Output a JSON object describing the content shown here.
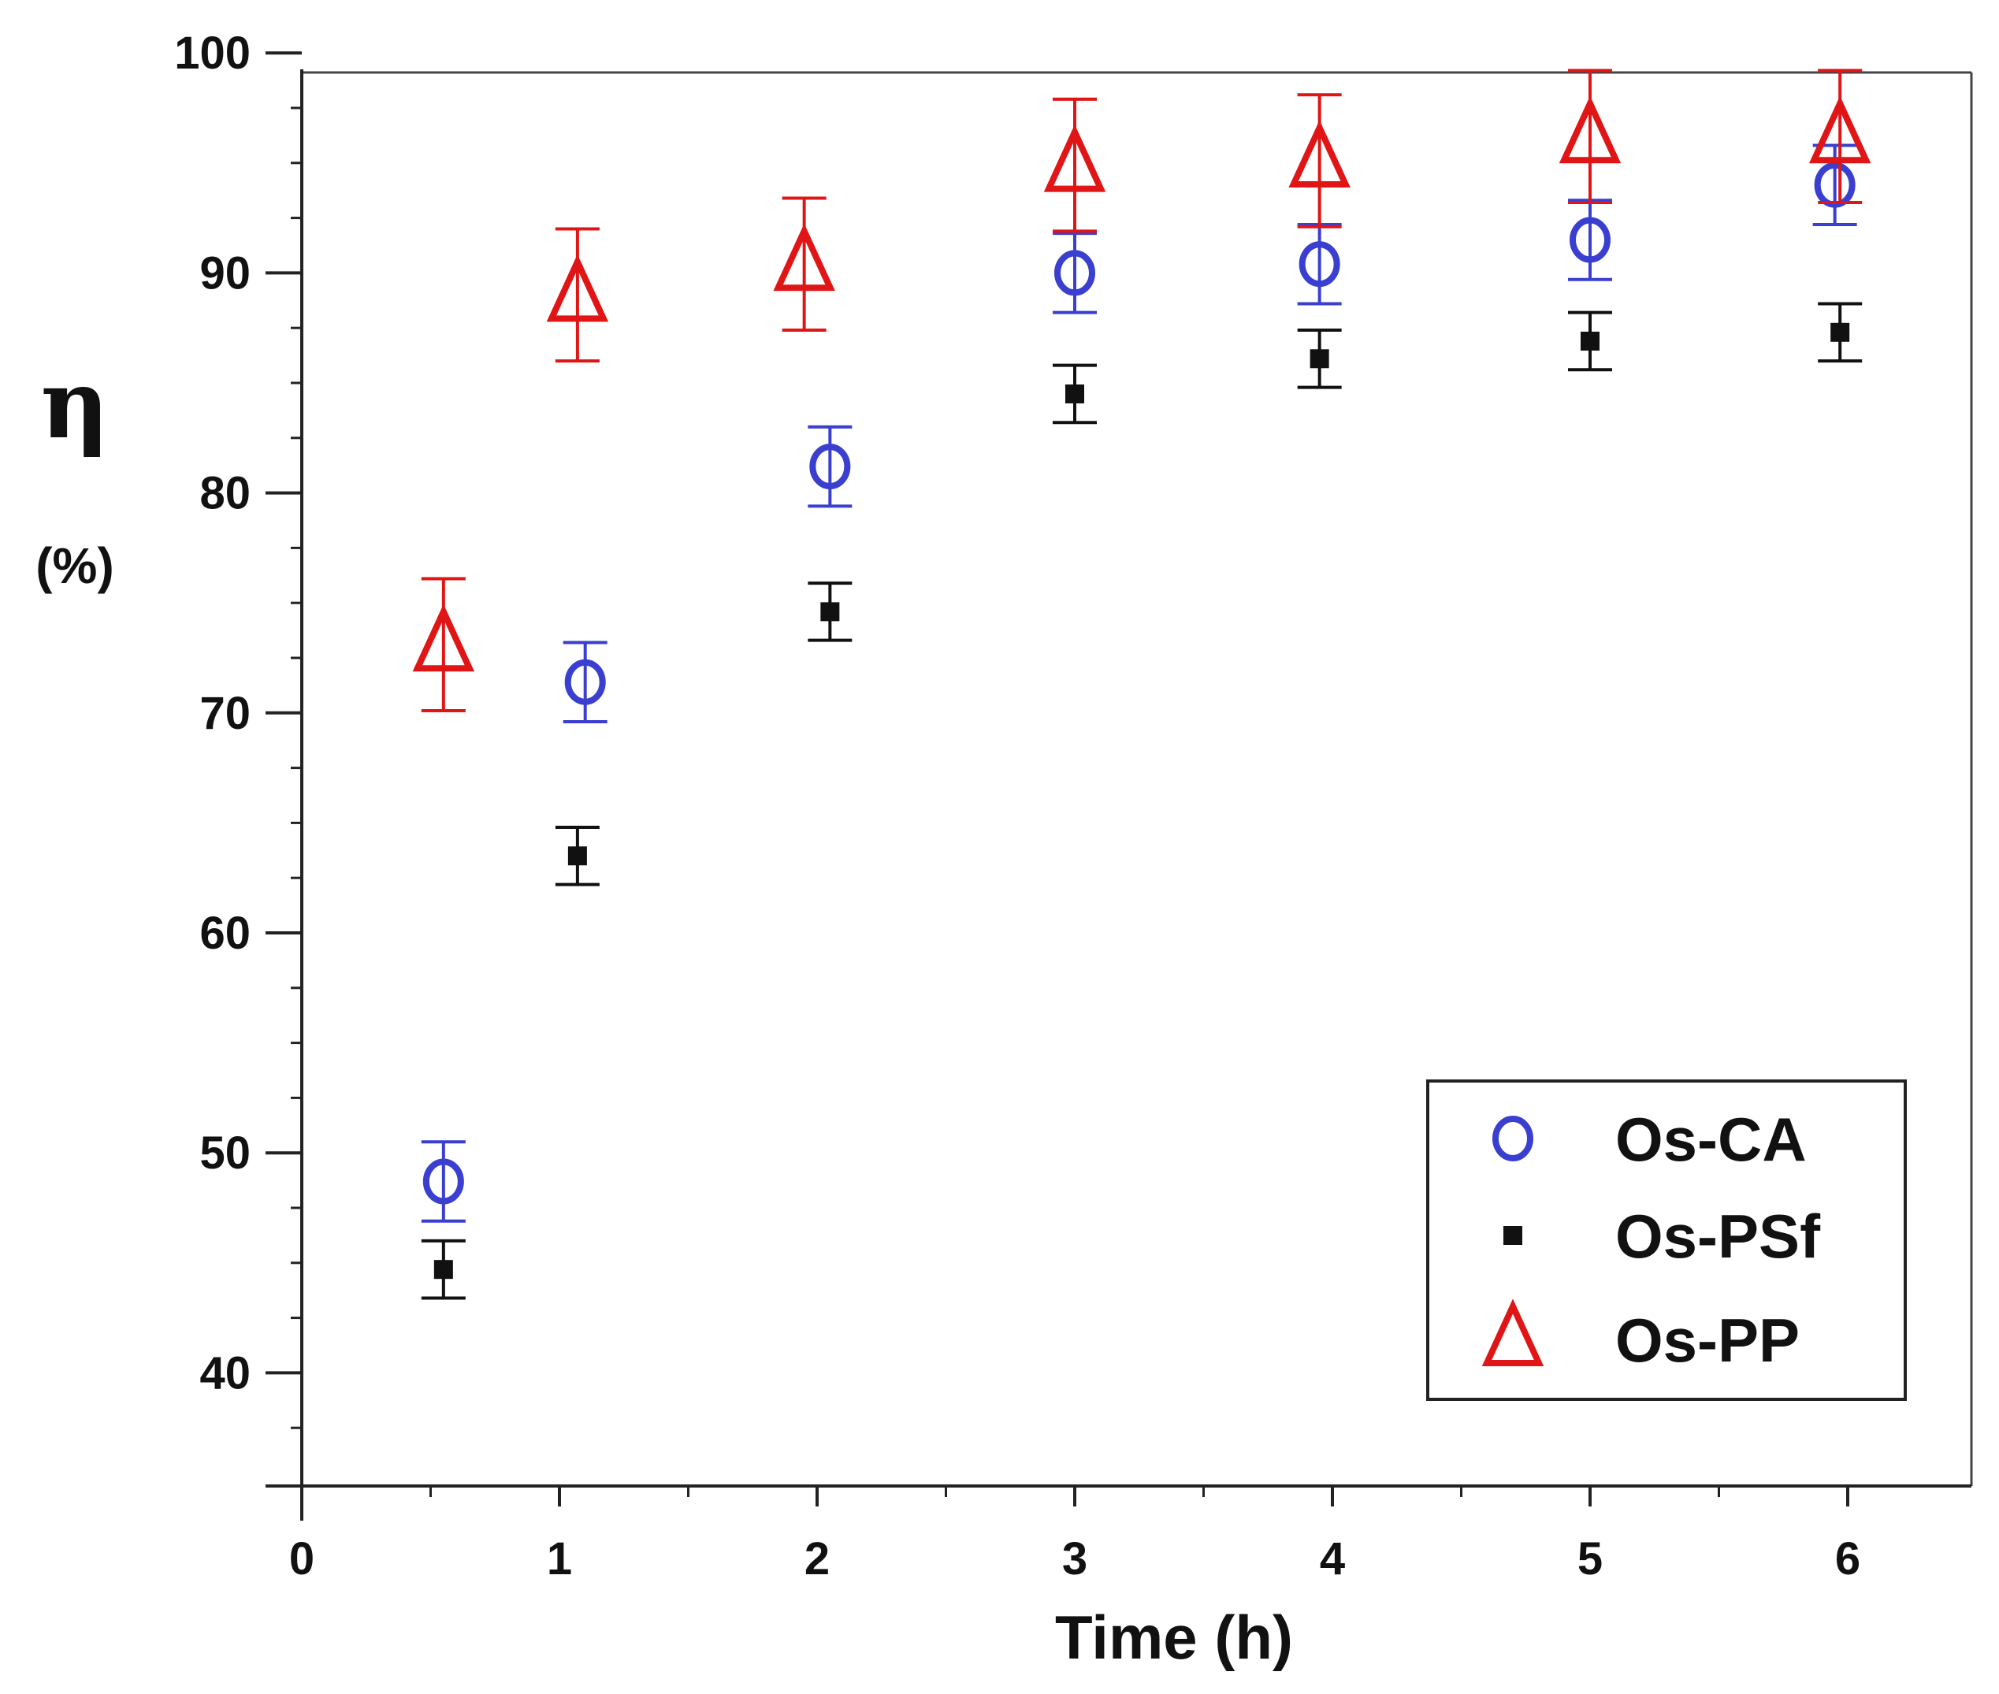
{
  "chart_data": {
    "type": "scatter",
    "title": "",
    "xlabel": "Time (h)",
    "ylabel_symbol": "η",
    "ylabel_unit": "(%)",
    "xlim": [
      0,
      6.5
    ],
    "ylim": [
      35,
      100
    ],
    "x_ticks": [
      0,
      1,
      2,
      3,
      4,
      5,
      6
    ],
    "x_tick_labels": [
      "0",
      "1",
      "2",
      "3",
      "4",
      "5",
      "6"
    ],
    "y_ticks": [
      40,
      50,
      60,
      70,
      80,
      90,
      100
    ],
    "y_tick_labels": [
      "40",
      "50",
      "60",
      "70",
      "80",
      "90",
      "100"
    ],
    "grid": false,
    "legend_position": "bottom-right",
    "series": [
      {
        "name": "Os-CA",
        "marker": "open-circle",
        "color": "#3a3fd0",
        "x": [
          0.55,
          1.1,
          2.05,
          3.0,
          3.95,
          5.0,
          5.95
        ],
        "y": [
          48.7,
          71.4,
          81.2,
          90.0,
          90.4,
          91.5,
          94.0
        ],
        "err": [
          1.8,
          1.8,
          1.8,
          1.8,
          1.8,
          1.8,
          1.8
        ]
      },
      {
        "name": "Os-PSf",
        "marker": "filled-square",
        "color": "#111111",
        "x": [
          0.55,
          1.07,
          2.05,
          3.0,
          3.95,
          5.0,
          5.97
        ],
        "y": [
          44.7,
          63.5,
          74.6,
          84.5,
          86.1,
          86.9,
          87.3
        ],
        "err": [
          1.3,
          1.3,
          1.3,
          1.3,
          1.3,
          1.3,
          1.3
        ]
      },
      {
        "name": "Os-PP",
        "marker": "open-triangle",
        "color": "#e01515",
        "x": [
          0.55,
          1.07,
          1.95,
          3.0,
          3.95,
          5.0,
          5.97
        ],
        "y": [
          73.1,
          89.0,
          90.4,
          94.9,
          95.1,
          96.2,
          96.2
        ],
        "err": [
          3.0,
          3.0,
          3.0,
          3.0,
          3.0,
          3.0,
          3.0
        ]
      }
    ]
  }
}
